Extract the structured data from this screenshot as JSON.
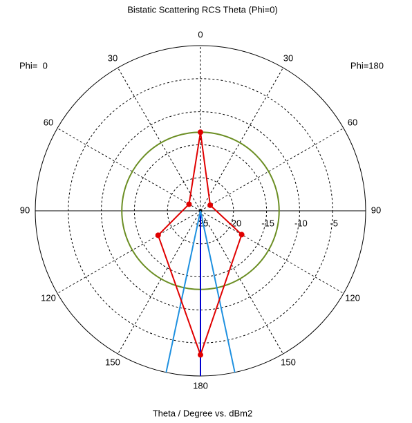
{
  "chart_data": {
    "type": "polar",
    "title": "Bistatic Scattering RCS Theta (Phi=0)",
    "xlabel": "Theta / Degree vs. dBm2",
    "left_label": "Phi=  0",
    "right_label": "Phi=180",
    "rlim": [
      -25,
      0
    ],
    "rticks": [
      -25,
      -20,
      -15,
      -10,
      -5
    ],
    "thetaticks": [
      0,
      30,
      60,
      90,
      120,
      150,
      180
    ],
    "grid": true,
    "series": [
      {
        "color": "#e00000",
        "phi": [
          0,
          0,
          0,
          0,
          180,
          180
        ],
        "theta": [
          0,
          60,
          120,
          180,
          120,
          60
        ],
        "values": [
          -13.1,
          -23.0,
          -17.6,
          -3.2,
          -17.8,
          -23.3
        ]
      }
    ],
    "reference_circle": {
      "value": -13.1,
      "color": "#6b8e23"
    },
    "lines": [
      {
        "theta": 180,
        "phi": 0,
        "color": "#0000d0"
      },
      {
        "theta": 168,
        "phi": 0,
        "color": "#1e90e0"
      },
      {
        "theta": 168,
        "phi": 180,
        "color": "#1e90e0"
      }
    ]
  }
}
